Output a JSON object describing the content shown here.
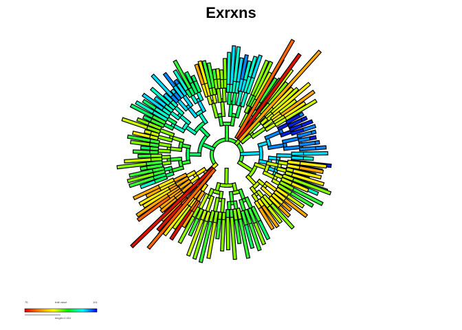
{
  "title": "Exrxns",
  "legend": {
    "min_label": "75",
    "max_label": "101",
    "title": "trait value",
    "length_label": "length=0.031",
    "colors": [
      "#dd0000",
      "#ff8800",
      "#ffff00",
      "#00ee00",
      "#00ffff",
      "#0000ee"
    ]
  },
  "tree_colors": {
    "outline": "#000000",
    "palette": [
      "#dd1100",
      "#ff6600",
      "#ffaa00",
      "#ffee00",
      "#ccff00",
      "#88ff00",
      "#33ff33",
      "#00ff66",
      "#00ffcc",
      "#00ddff",
      "#0088ff",
      "#0022dd"
    ]
  }
}
